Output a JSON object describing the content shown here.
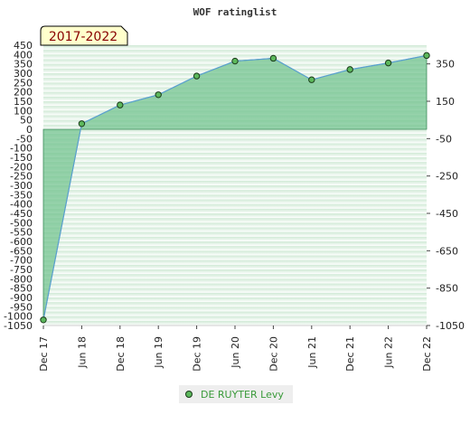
{
  "chart_data": {
    "type": "area",
    "title": "WOF ratinglist",
    "period_label": "2017-2022",
    "categories": [
      "Dec 17",
      "Jun 18",
      "Dec 18",
      "Jun 19",
      "Dec 19",
      "Jun 20",
      "Dec 20",
      "Jun 21",
      "Dec 21",
      "Jun 22",
      "Dec 22"
    ],
    "series": [
      {
        "name": "DE RUYTER Levy",
        "values": [
          -1020,
          30,
          130,
          185,
          285,
          365,
          380,
          265,
          320,
          355,
          395
        ]
      }
    ],
    "y_left_ticks": [
      450,
      400,
      350,
      300,
      250,
      200,
      150,
      100,
      50,
      0,
      -50,
      -100,
      -150,
      -200,
      -250,
      -300,
      -350,
      -400,
      -450,
      -500,
      -550,
      -600,
      -650,
      -700,
      -750,
      -800,
      -850,
      -900,
      -950,
      -1000,
      -1050
    ],
    "y_right_ticks": [
      350,
      150,
      -50,
      -250,
      -450,
      -650,
      -850,
      -1050
    ],
    "ylim": [
      -1050,
      450
    ],
    "legend_position": "bottom-center",
    "grid": true,
    "colors": {
      "fill": "#6cc08a",
      "line": "#5aa0d0",
      "marker": "#5cb85c",
      "band_dark": "#cfe9d5",
      "band_light": "#ffffff",
      "badge_bg": "#ffffcc",
      "badge_text": "#880000",
      "legend_text": "#3a9a3a",
      "legend_bg": "#eeeeee"
    }
  }
}
